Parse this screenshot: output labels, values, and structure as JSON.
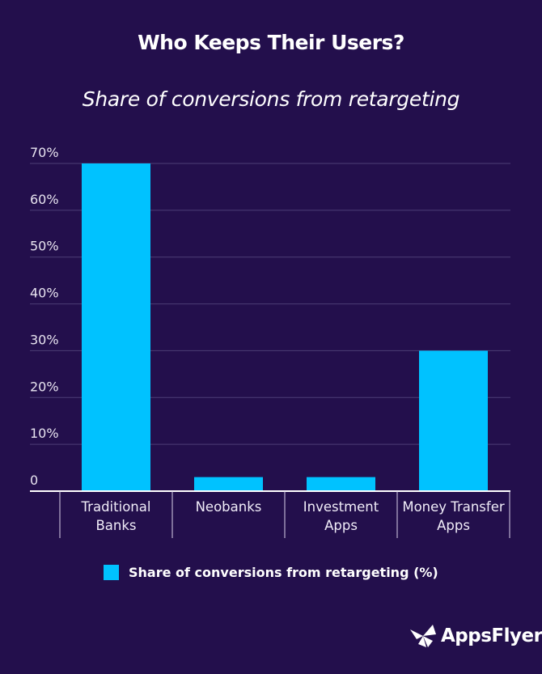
{
  "header": {
    "title": "Who Keeps Their Users?",
    "subtitle": "Share of conversions from retargeting"
  },
  "colors": {
    "background": "#230f4c",
    "bar": "#00c2ff",
    "gridline": "#4d3f76",
    "axis": "#ffffff"
  },
  "brand": {
    "name": "AppsFlyer",
    "icon": "appsflyer-logo-icon"
  },
  "chart_data": {
    "type": "bar",
    "title": "Who Keeps Their Users?",
    "subtitle": "Share of conversions from retargeting",
    "xlabel": "",
    "ylabel": "",
    "categories": [
      "Traditional Banks",
      "Neobanks",
      "Investment Apps",
      "Money Transfer Apps"
    ],
    "category_lines": [
      [
        "Traditional",
        "Banks"
      ],
      [
        "Neobanks"
      ],
      [
        "Investment",
        "Apps"
      ],
      [
        "Money Transfer",
        "Apps"
      ]
    ],
    "series": [
      {
        "name": "Share of conversions from retargeting (%)",
        "values": [
          70,
          3,
          3,
          30
        ]
      }
    ],
    "ylim": [
      0,
      70
    ],
    "yticks": [
      0,
      10,
      20,
      30,
      40,
      50,
      60,
      70
    ],
    "ytick_labels": [
      "0",
      "10%",
      "20%",
      "30%",
      "40%",
      "50%",
      "60%",
      "70%"
    ],
    "grid": true,
    "legend": {
      "position": "bottom-center",
      "entries": [
        "Share of conversions from retargeting (%)"
      ]
    }
  }
}
